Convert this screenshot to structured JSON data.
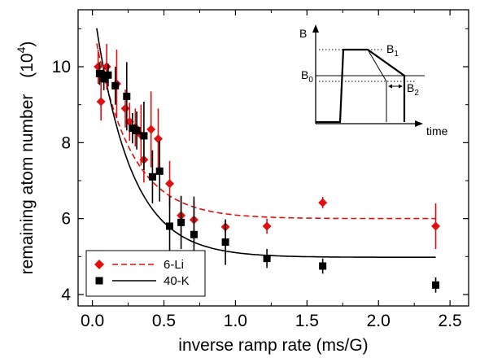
{
  "chart_data": {
    "type": "scatter",
    "xlabel": "inverse ramp rate (ms/G)",
    "ylabel": "remaining atom number",
    "ylabel_unit": "(10",
    "ylabel_exp": "4",
    "ylabel_close": ")",
    "xlim": [
      -0.1,
      2.63
    ],
    "ylim": [
      3.7,
      11.5
    ],
    "xticks": [
      0.0,
      0.5,
      1.0,
      1.5,
      2.0,
      2.5
    ],
    "xtick_labels": [
      "0.0",
      "0.5",
      "1.0",
      "1.5",
      "2.0",
      "2.5"
    ],
    "yticks": [
      4,
      6,
      8,
      10
    ],
    "ytick_labels": [
      "4",
      "6",
      "8",
      "10"
    ],
    "grid": false,
    "legend_position": "bottom-left",
    "colors": {
      "li": "#e01010",
      "k": "#000000"
    },
    "series": [
      {
        "name": "6-Li",
        "marker": "diamond",
        "color": "#e01010",
        "points": [
          {
            "x": 0.04,
            "y": 10.0,
            "err": 0.45
          },
          {
            "x": 0.06,
            "y": 9.08,
            "err": 0.5
          },
          {
            "x": 0.1,
            "y": 10.0,
            "err": 0.6
          },
          {
            "x": 0.17,
            "y": 9.55,
            "err": 0.9
          },
          {
            "x": 0.23,
            "y": 8.9,
            "err": 0.5
          },
          {
            "x": 0.26,
            "y": 8.55,
            "err": 0.5
          },
          {
            "x": 0.3,
            "y": 8.4,
            "err": 0.5
          },
          {
            "x": 0.34,
            "y": 8.2,
            "err": 0.8
          },
          {
            "x": 0.36,
            "y": 7.55,
            "err": 0.6
          },
          {
            "x": 0.41,
            "y": 8.35,
            "err": 1.0
          },
          {
            "x": 0.46,
            "y": 8.1,
            "err": 0.8
          },
          {
            "x": 0.54,
            "y": 6.92,
            "err": 0.6
          },
          {
            "x": 0.62,
            "y": 6.08,
            "err": 0.5
          },
          {
            "x": 0.71,
            "y": 5.97,
            "err": 0.5
          },
          {
            "x": 0.93,
            "y": 5.78,
            "err": 0.15
          },
          {
            "x": 1.22,
            "y": 5.8,
            "err": 0.2
          },
          {
            "x": 1.61,
            "y": 6.42,
            "err": 0.15
          },
          {
            "x": 2.4,
            "y": 5.8,
            "err": 0.6
          }
        ]
      },
      {
        "name": "40-K",
        "marker": "square",
        "color": "#000000",
        "points": [
          {
            "x": 0.05,
            "y": 9.82,
            "err": 0.3
          },
          {
            "x": 0.08,
            "y": 9.68,
            "err": 0.3
          },
          {
            "x": 0.11,
            "y": 9.78,
            "err": 0.3
          },
          {
            "x": 0.16,
            "y": 9.5,
            "err": 0.5
          },
          {
            "x": 0.24,
            "y": 9.22,
            "err": 0.9
          },
          {
            "x": 0.28,
            "y": 8.38,
            "err": 0.4
          },
          {
            "x": 0.31,
            "y": 8.32,
            "err": 0.5
          },
          {
            "x": 0.36,
            "y": 8.18,
            "err": 0.9
          },
          {
            "x": 0.42,
            "y": 7.1,
            "err": 0.7
          },
          {
            "x": 0.47,
            "y": 7.25,
            "err": 0.8
          },
          {
            "x": 0.54,
            "y": 5.8,
            "err": 0.8
          },
          {
            "x": 0.62,
            "y": 5.9,
            "err": 0.7
          },
          {
            "x": 0.71,
            "y": 5.58,
            "err": 1.0
          },
          {
            "x": 0.93,
            "y": 5.38,
            "err": 0.6
          },
          {
            "x": 1.22,
            "y": 4.95,
            "err": 0.25
          },
          {
            "x": 1.61,
            "y": 4.75,
            "err": 0.2
          },
          {
            "x": 2.4,
            "y": 4.25,
            "err": 0.2
          }
        ]
      }
    ],
    "fits": [
      {
        "series": "6-Li",
        "style": "dashed",
        "color": "#e01010",
        "A": 6.0,
        "B": 5.2,
        "tau": 0.25,
        "x_start": 0.03,
        "x_end": 2.4
      },
      {
        "series": "40-K",
        "style": "solid",
        "color": "#000000",
        "A": 4.98,
        "B": 6.8,
        "tau": 0.25,
        "x_start": 0.03,
        "x_end": 2.4
      }
    ],
    "inset": {
      "y_axis_label": "B",
      "x_axis_label": "time",
      "levels": [
        {
          "label": "B",
          "sub": "1"
        },
        {
          "label": "B",
          "sub": "0"
        },
        {
          "label": "B",
          "sub": "2"
        }
      ]
    }
  }
}
